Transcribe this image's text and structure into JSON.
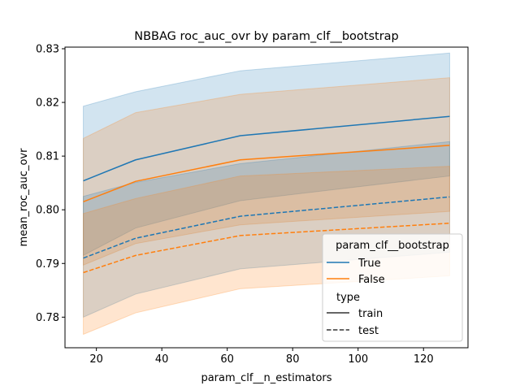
{
  "chart_data": {
    "type": "line",
    "title": "NBBAG roc_auc_ovr by param_clf__bootstrap",
    "xlabel": "param_clf__n_estimators",
    "ylabel": "mean_roc_auc_ovr",
    "xlim": [
      10.4,
      133.6
    ],
    "ylim": [
      0.7743,
      0.8303
    ],
    "xticks": [
      20,
      40,
      60,
      80,
      100,
      120
    ],
    "yticks": [
      0.78,
      0.79,
      0.8,
      0.81,
      0.82,
      0.83
    ],
    "x": [
      16,
      32,
      64,
      128
    ],
    "grid": false,
    "legend_position": "lower-right",
    "legend": {
      "hue_title": "param_clf__bootstrap",
      "hue_entries": [
        "True",
        "False"
      ],
      "style_title": "type",
      "style_entries": [
        "train",
        "test"
      ]
    },
    "series": [
      {
        "name": "True",
        "type": "train",
        "color": "#1f77b4",
        "dash": "solid",
        "band_alpha": 0.2,
        "values": [
          0.8054,
          0.8093,
          0.8138,
          0.8174
        ],
        "lower": [
          0.7915,
          0.7966,
          0.8017,
          0.8063
        ],
        "upper": [
          0.8193,
          0.822,
          0.8259,
          0.8292
        ]
      },
      {
        "name": "False",
        "type": "train",
        "color": "#ff7f0e",
        "dash": "solid",
        "band_alpha": 0.2,
        "values": [
          0.8015,
          0.8053,
          0.8093,
          0.812
        ],
        "lower": [
          0.7897,
          0.7937,
          0.7972,
          0.7997
        ],
        "upper": [
          0.8133,
          0.8181,
          0.8215,
          0.8246
        ]
      },
      {
        "name": "True",
        "type": "test",
        "color": "#1f77b4",
        "dash": "dashed",
        "band_alpha": 0.2,
        "values": [
          0.791,
          0.7947,
          0.7988,
          0.8024
        ],
        "lower": [
          0.78,
          0.7843,
          0.789,
          0.7921
        ],
        "upper": [
          0.8025,
          0.8051,
          0.8086,
          0.8127
        ]
      },
      {
        "name": "False",
        "type": "test",
        "color": "#ff7f0e",
        "dash": "dashed",
        "band_alpha": 0.2,
        "values": [
          0.7883,
          0.7915,
          0.7952,
          0.7975
        ],
        "lower": [
          0.7768,
          0.7808,
          0.7853,
          0.7877
        ],
        "upper": [
          0.7993,
          0.8021,
          0.8063,
          0.8081
        ]
      }
    ]
  }
}
